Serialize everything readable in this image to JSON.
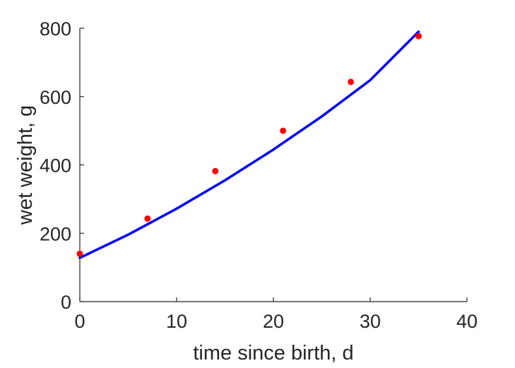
{
  "chart_data": {
    "type": "scatter",
    "title": "",
    "xlabel": "time since birth, d",
    "ylabel": "wet weight, g",
    "xlim": [
      0,
      40
    ],
    "ylim": [
      0,
      800
    ],
    "xticks": [
      0,
      10,
      20,
      30,
      40
    ],
    "yticks": [
      0,
      200,
      400,
      600,
      800
    ],
    "grid": false,
    "legend": "none",
    "series": [
      {
        "kind": "scatter",
        "color": "#ff0000",
        "x": [
          0,
          7,
          14,
          21,
          28,
          35
        ],
        "y": [
          140,
          243,
          382,
          500,
          643,
          777
        ]
      },
      {
        "kind": "line",
        "color": "#0000ff",
        "x": [
          0,
          5,
          10,
          15,
          20,
          25,
          30,
          35
        ],
        "y": [
          128,
          196,
          272,
          355,
          445,
          542,
          648,
          790
        ]
      }
    ]
  }
}
